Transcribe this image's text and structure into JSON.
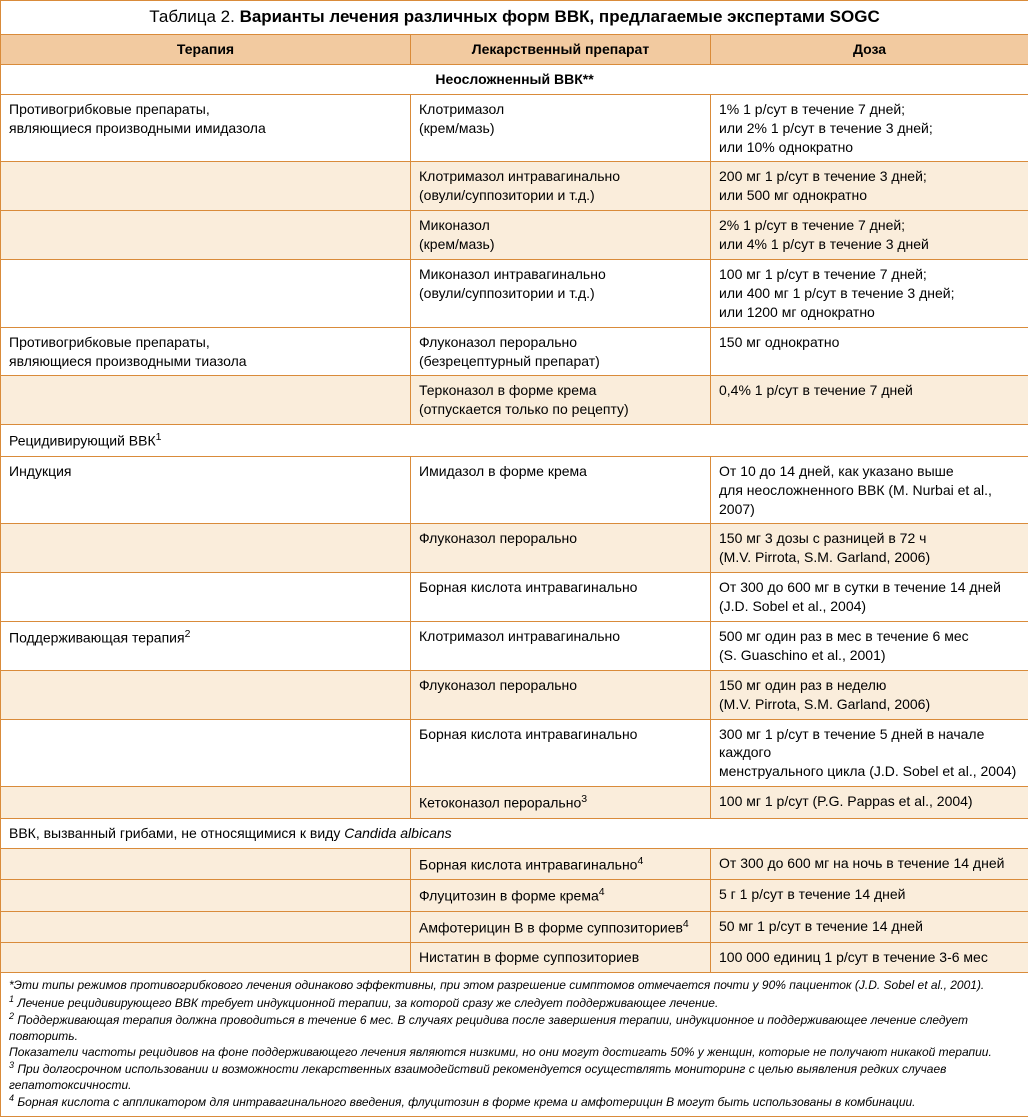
{
  "title_prefix": "Таблица 2. ",
  "title_main": "Варианты лечения различных форм ВВК, предлагаемые экспертами SOGC",
  "headers": {
    "c1": "Терапия",
    "c2": "Лекарственный препарат",
    "c3": "Доза"
  },
  "section1": "Неосложненный ВВК**",
  "r1": {
    "c1": "Противогрибковые препараты,\nявляющиеся производными имидазола",
    "c2": "Клотримазол\n(крем/мазь)",
    "c3": "1% 1 р/сут в течение 7 дней;\nили 2% 1 р/сут в течение 3 дней;\nили 10% однократно"
  },
  "r2": {
    "c1": "",
    "c2": "Клотримазол интравагинально\n(овули/суппозитории и т.д.)",
    "c3": "200 мг 1 р/сут в течение 3 дней;\nили 500 мг однократно"
  },
  "r3": {
    "c1": "",
    "c2": "Миконазол\n(крем/мазь)",
    "c3": "2% 1 р/сут в течение 7 дней;\nили 4% 1 р/сут в течение 3 дней"
  },
  "r4": {
    "c1": "",
    "c2": "Миконазол интравагинально\n(овули/суппозитории и т.д.)",
    "c3": "100 мг 1 р/сут в течение 7 дней;\nили 400 мг 1 р/сут в течение 3 дней;\nили 1200 мг однократно"
  },
  "r5": {
    "c1": "Противогрибковые препараты,\nявляющиеся производными тиазола",
    "c2": "Флуконазол перорально\n(безрецептурный препарат)",
    "c3": "150 мг однократно"
  },
  "r6": {
    "c1": "",
    "c2": "Терконазол в форме крема\n(отпускается только по рецепту)",
    "c3": "0,4% 1 р/сут в течение 7 дней"
  },
  "section2_pre": "Рецидивирующий ВВК",
  "section2_sup": "1",
  "r7": {
    "c1": "Индукция",
    "c2": "Имидазол в форме крема",
    "c3": "От 10 до 14 дней, как указано выше\nдля неосложненного ВВК (M. Nurbai et al., 2007)"
  },
  "r8": {
    "c1": "",
    "c2": "Флуконазол перорально",
    "c3": "150 мг 3 дозы с разницей в 72 ч\n(M.V. Pirrota, S.M. Garland, 2006)"
  },
  "r9": {
    "c1": "",
    "c2": "Борная кислота интравагинально",
    "c3": "От 300 до 600 мг в сутки в течение 14 дней\n(J.D. Sobel et al., 2004)"
  },
  "r10": {
    "c1_pre": "Поддерживающая терапия",
    "c1_sup": "2",
    "c2": "Клотримазол интравагинально",
    "c3": "500 мг один раз в мес в течение 6 мес\n(S. Guaschino et al., 2001)"
  },
  "r11": {
    "c1": "",
    "c2": "Флуконазол перорально",
    "c3": "150 мг один раз в неделю\n(M.V. Pirrota, S.M. Garland, 2006)"
  },
  "r12": {
    "c1": "",
    "c2": "Борная кислота интравагинально",
    "c3": "300 мг 1 р/сут в течение 5 дней в начале каждого\nменструального цикла (J.D. Sobel et al., 2004)"
  },
  "r13": {
    "c1": "",
    "c2_pre": "Кетоконазол перорально",
    "c2_sup": "3",
    "c3": "100 мг 1 р/сут (P.G. Pappas et al., 2004)"
  },
  "section3_pre": "ВВК, вызванный грибами, не относящимися к виду ",
  "section3_ital": "Candida albicans",
  "r14": {
    "c1": "",
    "c2_pre": "Борная кислота интравагинально",
    "c2_sup": "4",
    "c3": "От 300 до 600 мг на ночь в течение 14 дней"
  },
  "r15": {
    "c1": "",
    "c2_pre": "Флуцитозин в форме крема",
    "c2_sup": "4",
    "c3": "5 г 1 р/сут в течение 14 дней"
  },
  "r16": {
    "c1": "",
    "c2_pre": "Амфотерицин В в форме суппозиториев",
    "c2_sup": "4",
    "c3": "50 мг 1 р/сут в течение 14 дней"
  },
  "r17": {
    "c1": "",
    "c2": "Нистатин в форме суппозиториев",
    "c3": "100 000 единиц 1 р/сут в течение 3-6 мес"
  },
  "fn1": "*Эти типы режимов противогрибкового лечения одинаково эффективны, при этом разрешение симптомов отмечается почти у 90% пациенток (J.D. Sobel et al., 2001).",
  "fn2_sup": "1",
  "fn2": " Лечение рецидивирующего ВВК требует индукционной терапии, за которой сразу же следует поддерживающее лечение.",
  "fn3_sup": "2",
  "fn3": " Поддерживающая терапия должна проводиться в течение 6 мес. В случаях рецидива после завершения терапии, индукционное и поддерживающее лечение следует повторить.\nПоказатели частоты рецидивов на фоне поддерживающего лечения являются низкими, но они могут достигать 50% у женщин, которые не получают никакой терапии.",
  "fn4_sup": "3",
  "fn4": " При долгосрочном использовании и возможности лекарственных взаимодействий рекомендуется осуществлять мониторинг с целью выявления редких случаев гепатотоксичности.",
  "fn5_sup": "4",
  "fn5": " Борная кислота с аппликатором для интравагинального введения, флуцитозин в форме крема и амфотерицин В могут быть использованы в комбинации."
}
